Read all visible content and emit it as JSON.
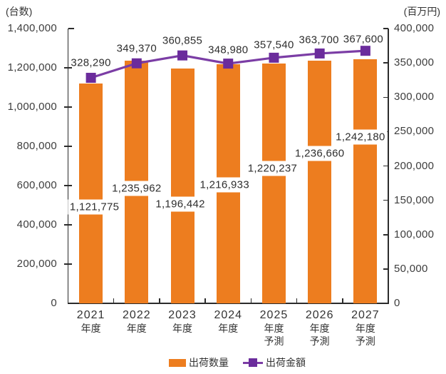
{
  "chart_data": {
    "type": "bar+line",
    "categories": [
      "2021年度",
      "2022年度",
      "2023年度",
      "2024年度",
      "2025年度予測",
      "2026年度予測",
      "2027年度予測"
    ],
    "category_lines": [
      [
        "2021",
        "年度"
      ],
      [
        "2022",
        "年度"
      ],
      [
        "2023",
        "年度"
      ],
      [
        "2024",
        "年度"
      ],
      [
        "2025",
        "年度",
        "予測"
      ],
      [
        "2026",
        "年度",
        "予測"
      ],
      [
        "2027",
        "年度",
        "予測"
      ]
    ],
    "series": [
      {
        "name": "出荷数量",
        "type": "bar",
        "axis": "left",
        "color": "#ED7D1F",
        "values": [
          1121775,
          1235962,
          1196442,
          1216933,
          1220237,
          1236660,
          1242180
        ]
      },
      {
        "name": "出荷金額",
        "type": "line",
        "axis": "right",
        "line_color": "#7B3DA5",
        "marker_color": "#6B2C9C",
        "values": [
          328290,
          349370,
          360855,
          348980,
          357540,
          363700,
          367600
        ]
      }
    ],
    "left_axis": {
      "title": "(台数)",
      "min": 0,
      "max": 1400000,
      "step": 200000
    },
    "right_axis": {
      "title": "(百万円)",
      "min": 0,
      "max": 400000,
      "step": 50000
    },
    "grid": false,
    "legend_position": "bottom"
  },
  "colors": {
    "bar": "#ED7D1F",
    "line": "#7B3DA5",
    "marker": "#6B2C9C",
    "axis": "#2B2B2B",
    "text": "#333333",
    "background": "#FFFFFF"
  }
}
